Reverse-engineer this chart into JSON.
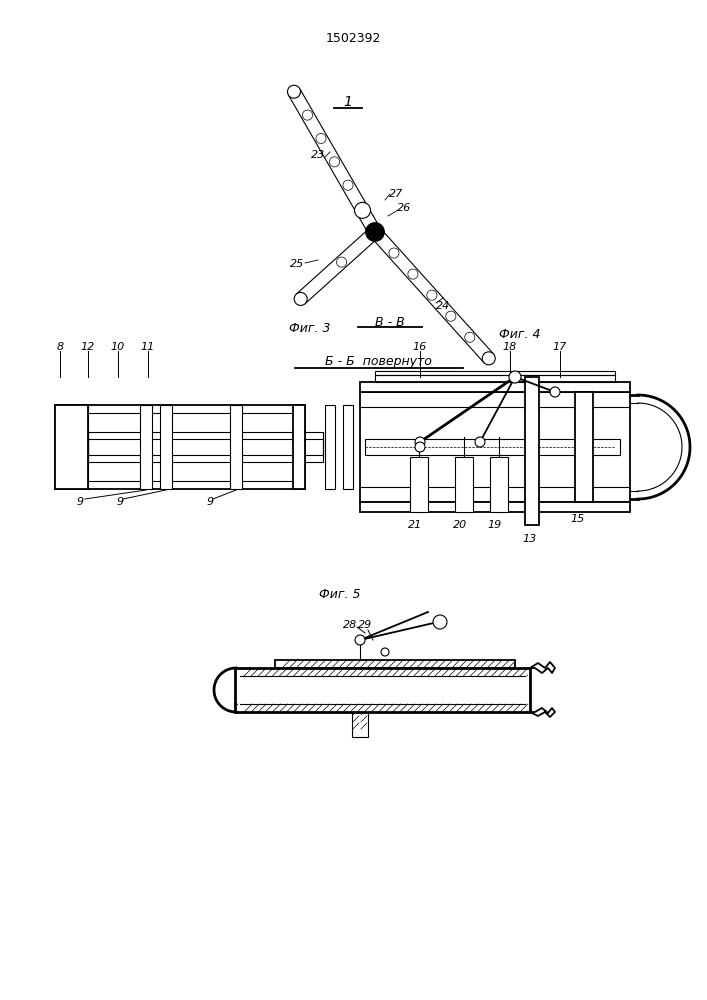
{
  "title": "1502392",
  "fig3_label": "Фиг. 3",
  "fig4_label": "Фиг. 4",
  "fig5_label": "Фиг. 5",
  "section_bb": "Б - Б  повернуто",
  "section_vv": "В - В",
  "label_1": "1",
  "bg_color": "#ffffff"
}
